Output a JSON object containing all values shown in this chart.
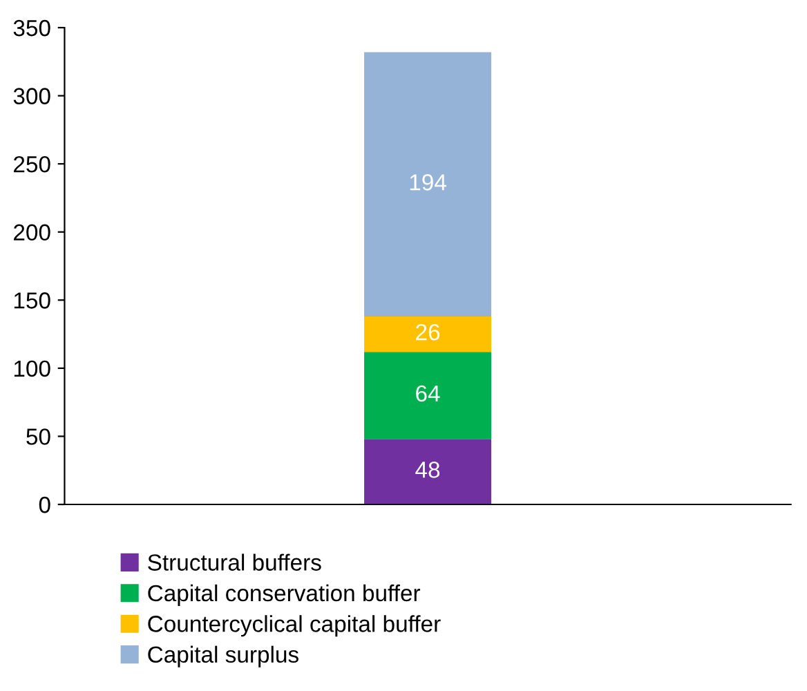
{
  "chart_data": {
    "type": "bar",
    "stacked": true,
    "categories": [
      null
    ],
    "series": [
      {
        "name": "Structural buffers",
        "color": "#7030a0",
        "values": [
          48
        ]
      },
      {
        "name": "Capital conservation buffer",
        "color": "#00b050",
        "values": [
          64
        ]
      },
      {
        "name": "Countercyclical capital buffer",
        "color": "#ffc000",
        "values": [
          26
        ]
      },
      {
        "name": "Capital surplus",
        "color": "#95b3d7",
        "values": [
          194
        ]
      }
    ],
    "ylim": [
      0,
      350
    ],
    "yticks": [
      0,
      50,
      100,
      150,
      200,
      250,
      300,
      350
    ],
    "data_labels": true,
    "legend": "bottom",
    "grid": false
  }
}
